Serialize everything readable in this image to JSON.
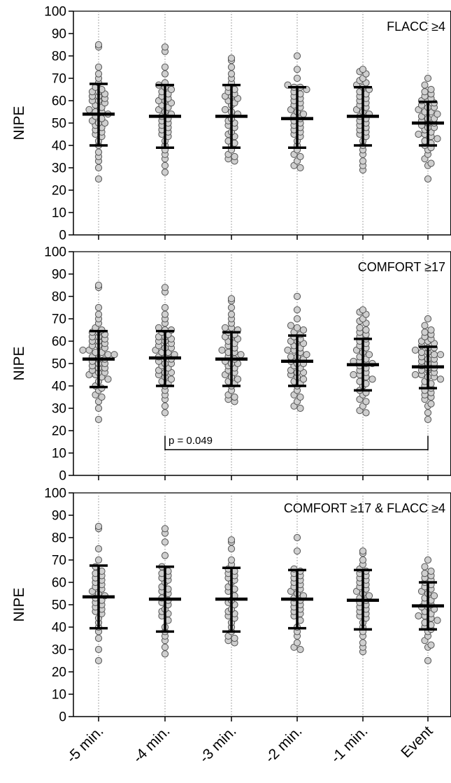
{
  "chart_data": {
    "type": "scatter",
    "description_kind": "dot-plot with mean and SD error bars",
    "categories": [
      "-5 min.",
      "-4 min.",
      "-3 min.",
      "-2 min.",
      "-1 min.",
      "Event"
    ],
    "ylabel": "NIPE",
    "ylim": [
      0,
      100
    ],
    "yticks": [
      0,
      10,
      20,
      30,
      40,
      50,
      60,
      70,
      80,
      90,
      100
    ],
    "grid": false,
    "point_color": "#cfcfcf",
    "point_stroke": "#555555",
    "panels": [
      {
        "title": "FLACC ≥4",
        "series": [
          {
            "category": "-5 min.",
            "mean": 54,
            "sd_low": 40,
            "sd_high": 67.5,
            "points": [
              85,
              84,
              75,
              72,
              70,
              68,
              66,
              65,
              64,
              64,
              63,
              62,
              62,
              61,
              60,
              60,
              59,
              58,
              57,
              56,
              55,
              55,
              54,
              53,
              52,
              51,
              50,
              50,
              49,
              48,
              47,
              46,
              45,
              44,
              42,
              40,
              37,
              35,
              33,
              30,
              25
            ]
          },
          {
            "category": "-4 min.",
            "mean": 53,
            "sd_low": 39,
            "sd_high": 67,
            "points": [
              84,
              82,
              75,
              72,
              68,
              67,
              66,
              65,
              64,
              63,
              62,
              61,
              60,
              60,
              59,
              58,
              57,
              56,
              55,
              54,
              53,
              52,
              51,
              50,
              49,
              48,
              47,
              46,
              45,
              44,
              42,
              40,
              38,
              36,
              34,
              31,
              28
            ]
          },
          {
            "category": "-3 min.",
            "mean": 53,
            "sd_low": 39,
            "sd_high": 67,
            "points": [
              79,
              78,
              75,
              72,
              70,
              68,
              66,
              65,
              64,
              63,
              62,
              62,
              61,
              60,
              59,
              58,
              56,
              55,
              54,
              52,
              51,
              50,
              49,
              48,
              46,
              45,
              44,
              42,
              41,
              40,
              38,
              36,
              35,
              34,
              33
            ]
          },
          {
            "category": "-2 min.",
            "mean": 52,
            "sd_low": 39,
            "sd_high": 66,
            "points": [
              80,
              74,
              70,
              67,
              66,
              66,
              65,
              64,
              63,
              62,
              61,
              60,
              59,
              58,
              57,
              56,
              55,
              54,
              53,
              52,
              51,
              50,
              49,
              48,
              47,
              46,
              45,
              44,
              42,
              40,
              38,
              36,
              35,
              33,
              31,
              30
            ]
          },
          {
            "category": "-1 min.",
            "mean": 53,
            "sd_low": 40,
            "sd_high": 66,
            "points": [
              74,
              73,
              72,
              70,
              69,
              68,
              67,
              66,
              65,
              64,
              63,
              62,
              61,
              60,
              59,
              58,
              57,
              56,
              55,
              54,
              53,
              52,
              51,
              50,
              49,
              48,
              47,
              46,
              45,
              44,
              42,
              40,
              38,
              36,
              33,
              31,
              29
            ]
          },
          {
            "category": "Event",
            "mean": 50,
            "sd_low": 40,
            "sd_high": 59.5,
            "points": [
              70,
              67,
              65,
              64,
              63,
              62,
              61,
              60,
              60,
              59,
              58,
              57,
              57,
              56,
              55,
              55,
              54,
              53,
              52,
              52,
              51,
              50,
              50,
              49,
              48,
              48,
              47,
              46,
              45,
              45,
              44,
              43,
              42,
              41,
              40,
              39,
              38,
              36,
              34,
              32,
              31,
              25
            ]
          }
        ]
      },
      {
        "title": "COMFORT ≥17",
        "annotation": {
          "text": "p = 0.049",
          "from": "-4 min.",
          "to": "Event",
          "y": 11.5
        },
        "series": [
          {
            "category": "-5 min.",
            "mean": 52,
            "sd_low": 39.5,
            "sd_high": 64.5,
            "points": [
              85,
              84,
              75,
              72,
              70,
              68,
              66,
              65,
              64,
              64,
              63,
              62,
              62,
              61,
              60,
              60,
              59,
              58,
              58,
              57,
              56,
              56,
              55,
              55,
              54,
              54,
              53,
              52,
              52,
              51,
              50,
              50,
              49,
              48,
              48,
              47,
              46,
              46,
              45,
              45,
              44,
              43,
              42,
              40,
              39,
              38,
              36,
              35,
              33,
              30,
              25
            ]
          },
          {
            "category": "-4 min.",
            "mean": 52.5,
            "sd_low": 40,
            "sd_high": 64.5,
            "points": [
              84,
              82,
              75,
              72,
              70,
              68,
              66,
              65,
              65,
              64,
              63,
              62,
              62,
              61,
              60,
              60,
              59,
              58,
              57,
              57,
              56,
              55,
              55,
              54,
              53,
              53,
              52,
              51,
              50,
              50,
              49,
              48,
              47,
              46,
              46,
              45,
              44,
              43,
              42,
              41,
              40,
              38,
              36,
              34,
              31,
              28
            ]
          },
          {
            "category": "-3 min.",
            "mean": 52,
            "sd_low": 40,
            "sd_high": 64,
            "points": [
              79,
              78,
              75,
              72,
              70,
              68,
              66,
              66,
              65,
              64,
              63,
              62,
              62,
              61,
              60,
              59,
              58,
              57,
              56,
              55,
              55,
              54,
              53,
              52,
              51,
              50,
              50,
              49,
              48,
              47,
              46,
              45,
              44,
              43,
              42,
              41,
              40,
              38,
              36,
              35,
              34,
              33
            ]
          },
          {
            "category": "-2 min.",
            "mean": 51,
            "sd_low": 40,
            "sd_high": 62.5,
            "points": [
              80,
              74,
              70,
              67,
              66,
              65,
              64,
              63,
              62,
              61,
              60,
              60,
              59,
              58,
              57,
              56,
              56,
              55,
              54,
              53,
              53,
              52,
              51,
              50,
              50,
              49,
              48,
              47,
              46,
              46,
              45,
              44,
              43,
              42,
              41,
              40,
              38,
              36,
              35,
              33,
              31,
              30
            ]
          },
          {
            "category": "-1 min.",
            "mean": 49.5,
            "sd_low": 38,
            "sd_high": 61,
            "points": [
              74,
              73,
              72,
              70,
              69,
              68,
              66,
              65,
              64,
              63,
              62,
              61,
              60,
              59,
              58,
              57,
              56,
              55,
              54,
              53,
              52,
              51,
              51,
              50,
              50,
              49,
              48,
              47,
              46,
              45,
              45,
              44,
              43,
              42,
              41,
              40,
              38,
              37,
              36,
              34,
              33,
              31,
              29,
              28
            ]
          },
          {
            "category": "Event",
            "mean": 48.5,
            "sd_low": 39,
            "sd_high": 57.5,
            "points": [
              70,
              67,
              65,
              64,
              63,
              62,
              61,
              60,
              60,
              59,
              58,
              57,
              57,
              56,
              55,
              55,
              54,
              54,
              53,
              52,
              52,
              51,
              50,
              50,
              49,
              48,
              48,
              47,
              47,
              46,
              45,
              45,
              44,
              44,
              43,
              42,
              41,
              40,
              39,
              38,
              37,
              36,
              35,
              34,
              32,
              31,
              28,
              25
            ]
          }
        ]
      },
      {
        "title": "COMFORT ≥17 & FLACC ≥4",
        "series": [
          {
            "category": "-5 min.",
            "mean": 53.5,
            "sd_low": 39.5,
            "sd_high": 67.5,
            "points": [
              85,
              84,
              75,
              70,
              67,
              65,
              64,
              63,
              62,
              61,
              60,
              59,
              58,
              57,
              56,
              55,
              54,
              53,
              52,
              51,
              50,
              49,
              48,
              47,
              46,
              44,
              42,
              40,
              38,
              35,
              30,
              25
            ]
          },
          {
            "category": "-4 min.",
            "mean": 52.5,
            "sd_low": 38,
            "sd_high": 67,
            "points": [
              84,
              82,
              78,
              72,
              67,
              65,
              64,
              63,
              62,
              61,
              60,
              58,
              57,
              56,
              55,
              53,
              52,
              51,
              50,
              48,
              47,
              46,
              45,
              43,
              40,
              38,
              36,
              34,
              31,
              28
            ]
          },
          {
            "category": "-3 min.",
            "mean": 52.5,
            "sd_low": 38,
            "sd_high": 66.5,
            "points": [
              79,
              78,
              75,
              70,
              68,
              66,
              65,
              64,
              63,
              62,
              61,
              60,
              58,
              57,
              56,
              54,
              52,
              51,
              50,
              48,
              47,
              46,
              45,
              44,
              42,
              40,
              38,
              36,
              35,
              34,
              33
            ]
          },
          {
            "category": "-2 min.",
            "mean": 52.5,
            "sd_low": 39.5,
            "sd_high": 65.5,
            "points": [
              80,
              74,
              66,
              65,
              64,
              63,
              62,
              61,
              60,
              59,
              58,
              57,
              56,
              55,
              54,
              53,
              52,
              51,
              50,
              49,
              48,
              47,
              46,
              45,
              43,
              40,
              38,
              36,
              33,
              31,
              30
            ]
          },
          {
            "category": "-1 min.",
            "mean": 52,
            "sd_low": 39,
            "sd_high": 65.5,
            "points": [
              74,
              73,
              70,
              68,
              66,
              65,
              64,
              63,
              62,
              61,
              60,
              59,
              58,
              57,
              56,
              55,
              54,
              53,
              52,
              51,
              50,
              49,
              48,
              47,
              46,
              45,
              44,
              42,
              40,
              38,
              36,
              33,
              31,
              29
            ]
          },
          {
            "category": "Event",
            "mean": 49.5,
            "sd_low": 39,
            "sd_high": 60,
            "points": [
              70,
              67,
              65,
              64,
              63,
              62,
              61,
              60,
              59,
              58,
              57,
              56,
              55,
              54,
              53,
              52,
              51,
              50,
              49,
              49,
              48,
              47,
              46,
              45,
              45,
              44,
              43,
              42,
              41,
              40,
              39,
              38,
              36,
              34,
              32,
              31,
              25
            ]
          }
        ]
      }
    ]
  }
}
